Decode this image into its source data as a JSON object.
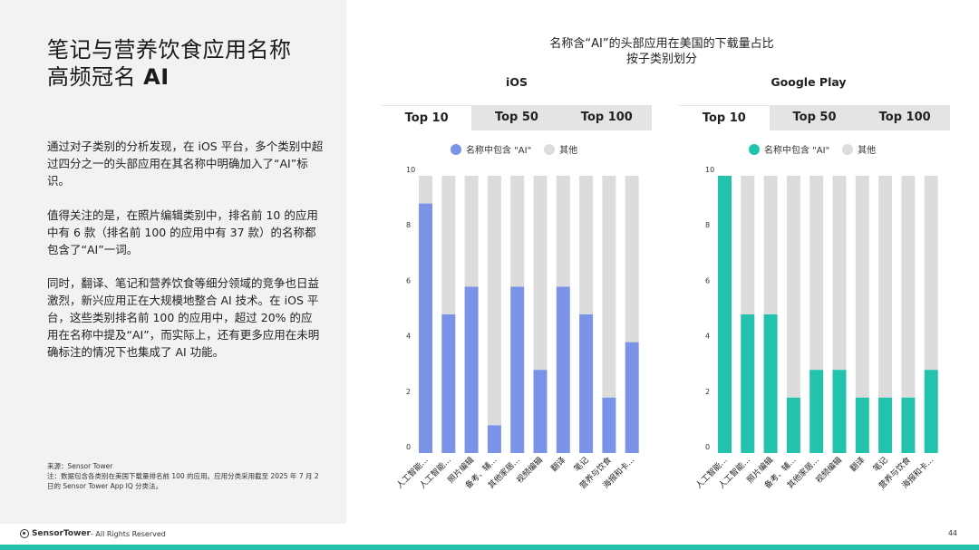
{
  "left": {
    "title_line1": "笔记与营养饮食应用名称",
    "title_line2_prefix": "高频冠名 ",
    "title_line2_bold": "AI",
    "paragraphs": [
      "通过对子类别的分析发现，在 iOS 平台，多个类别中超过四分之一的头部应用在其名称中明确加入了“AI”标识。",
      "值得关注的是，在照片编辑类别中，排名前 10 的应用中有 6 款（排名前 100 的应用中有 37 款）的名称都包含了“AI”一词。",
      "同时，翻译、笔记和营养饮食等细分领域的竞争也日益激烈，新兴应用正在大规模地整合 AI 技术。在 iOS 平台，这些类别排名前 100 的应用中，超过 20% 的应用在名称中提及“AI”，而实际上，还有更多应用在未明确标注的情况下也集成了 AI 功能。"
    ],
    "source_line1": "来源：Sensor Tower",
    "source_line2": "注：数据包含各类别在美国下载量排名前 100 的应用。应用分类采用截至 2025 年 7 月 2 日的 Sensor Tower App IQ 分类法。"
  },
  "footer": {
    "brand": "SensorTower",
    "rights": " - All Rights Reserved",
    "page": "44"
  },
  "chart_header": {
    "line1": "名称含“AI”的头部应用在美国的下载量占比",
    "line2": "按子类别划分"
  },
  "tabs": [
    "Top 10",
    "Top 50",
    "Top 100"
  ],
  "active_tab": "Top 10",
  "legend": {
    "ai": "名称中包含 \"AI\"",
    "other": "其他"
  },
  "colors": {
    "ios": "#7b93e6",
    "gp": "#22c2ad",
    "other": "#dcdcdc",
    "bottom_bar": "#26c2ae"
  },
  "chart_data": [
    {
      "type": "bar",
      "title": "iOS",
      "categories": [
        "人工智能...",
        "人工智能...",
        "照片编辑",
        "备考、辅...",
        "其他家居...",
        "视频编辑",
        "翻译",
        "笔记",
        "营养与饮食",
        "海报和卡..."
      ],
      "series": [
        {
          "name": "名称中包含 \"AI\"",
          "values": [
            9,
            5,
            6,
            1,
            6,
            3,
            6,
            5,
            2,
            4
          ]
        },
        {
          "name": "其他",
          "values": [
            1,
            5,
            4,
            9,
            4,
            7,
            4,
            5,
            8,
            6
          ]
        }
      ],
      "stacked": true,
      "yticks": [
        0,
        2,
        4,
        6,
        8,
        10
      ],
      "ylim": [
        0,
        10
      ]
    },
    {
      "type": "bar",
      "title": "Google Play",
      "categories": [
        "人工智能...",
        "人工智能...",
        "照片编辑",
        "备考、辅...",
        "其他家居...",
        "视频编辑",
        "翻译",
        "笔记",
        "营养与饮食",
        "海报和卡..."
      ],
      "series": [
        {
          "name": "名称中包含 \"AI\"",
          "values": [
            10,
            5,
            5,
            2,
            3,
            3,
            2,
            2,
            2,
            3
          ]
        },
        {
          "name": "其他",
          "values": [
            0,
            5,
            5,
            8,
            7,
            7,
            8,
            8,
            8,
            7
          ]
        }
      ],
      "stacked": true,
      "yticks": [
        0,
        2,
        4,
        6,
        8,
        10
      ],
      "ylim": [
        0,
        10
      ]
    }
  ]
}
